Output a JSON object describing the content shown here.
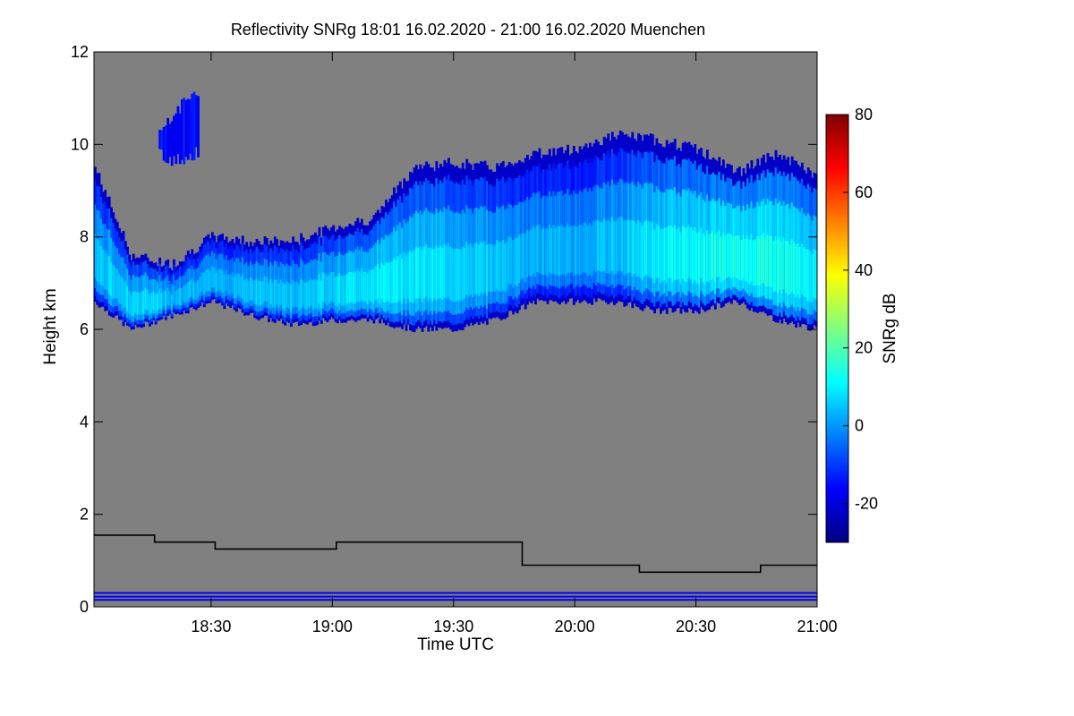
{
  "chart_data": {
    "type": "heatmap",
    "title": "Reflectivity SNRg   18:01 16.02.2020 - 21:00 16.02.2020 Muenchen",
    "xlabel": "Time UTC",
    "ylabel": "Height km",
    "xlim_minutes_utc": [
      1081,
      1260
    ],
    "ylim": [
      0,
      12
    ],
    "x_ticks": [
      {
        "value": 1110,
        "label": "18:30"
      },
      {
        "value": 1140,
        "label": "19:00"
      },
      {
        "value": 1170,
        "label": "19:30"
      },
      {
        "value": 1200,
        "label": "20:00"
      },
      {
        "value": 1230,
        "label": "20:30"
      },
      {
        "value": 1260,
        "label": "21:00"
      }
    ],
    "y_ticks": [
      {
        "value": 0,
        "label": "0"
      },
      {
        "value": 2,
        "label": "2"
      },
      {
        "value": 4,
        "label": "4"
      },
      {
        "value": 6,
        "label": "6"
      },
      {
        "value": 8,
        "label": "8"
      },
      {
        "value": 10,
        "label": "10"
      },
      {
        "value": 12,
        "label": "12"
      }
    ],
    "colorbar": {
      "label": "SNRg dB",
      "range": [
        -30,
        80
      ],
      "ticks": [
        {
          "value": -20,
          "label": "-20"
        },
        {
          "value": 0,
          "label": "0"
        },
        {
          "value": 20,
          "label": "20"
        },
        {
          "value": 40,
          "label": "40"
        },
        {
          "value": 60,
          "label": "60"
        },
        {
          "value": 80,
          "label": "80"
        }
      ],
      "stops": [
        "#00007f",
        "#0000ff",
        "#0080ff",
        "#00ffff",
        "#80ff80",
        "#ffff00",
        "#ff8000",
        "#ff0000",
        "#7f0000"
      ]
    },
    "background_color": "#808080",
    "cloud_layer": {
      "times": [
        1081,
        1090,
        1100,
        1110,
        1120,
        1130,
        1140,
        1150,
        1160,
        1170,
        1180,
        1190,
        1200,
        1210,
        1220,
        1230,
        1240,
        1250,
        1260
      ],
      "base_km": [
        6.6,
        6.0,
        6.3,
        6.6,
        6.3,
        6.1,
        6.2,
        6.2,
        6.0,
        6.0,
        6.2,
        6.6,
        6.6,
        6.6,
        6.4,
        6.4,
        6.6,
        6.2,
        6.0
      ],
      "top_km": [
        9.5,
        7.6,
        7.4,
        8.0,
        7.9,
        7.9,
        8.2,
        8.4,
        9.5,
        9.6,
        9.5,
        9.8,
        9.9,
        10.2,
        10.1,
        9.9,
        9.4,
        9.8,
        9.3
      ],
      "core_snr_db": [
        5,
        8,
        5,
        3,
        6,
        5,
        8,
        10,
        10,
        8,
        6,
        3,
        3,
        5,
        10,
        12,
        14,
        14,
        10
      ]
    },
    "upper_cloud_patch": {
      "time_range": [
        1097,
        1107
      ],
      "height_range_km": [
        9.5,
        11.2
      ],
      "snr_db": -20
    },
    "boundary_layer_height": {
      "times": [
        1081,
        1096,
        1096,
        1111,
        1111,
        1126,
        1126,
        1141,
        1141,
        1187,
        1187,
        1216,
        1216,
        1246,
        1246,
        1260
      ],
      "heights_km": [
        1.55,
        1.55,
        1.4,
        1.4,
        1.25,
        1.25,
        1.25,
        1.25,
        1.4,
        1.4,
        0.9,
        0.9,
        0.75,
        0.75,
        0.9,
        0.9
      ]
    },
    "near_surface_lines_km": [
      0.15,
      0.22,
      0.3
    ]
  }
}
